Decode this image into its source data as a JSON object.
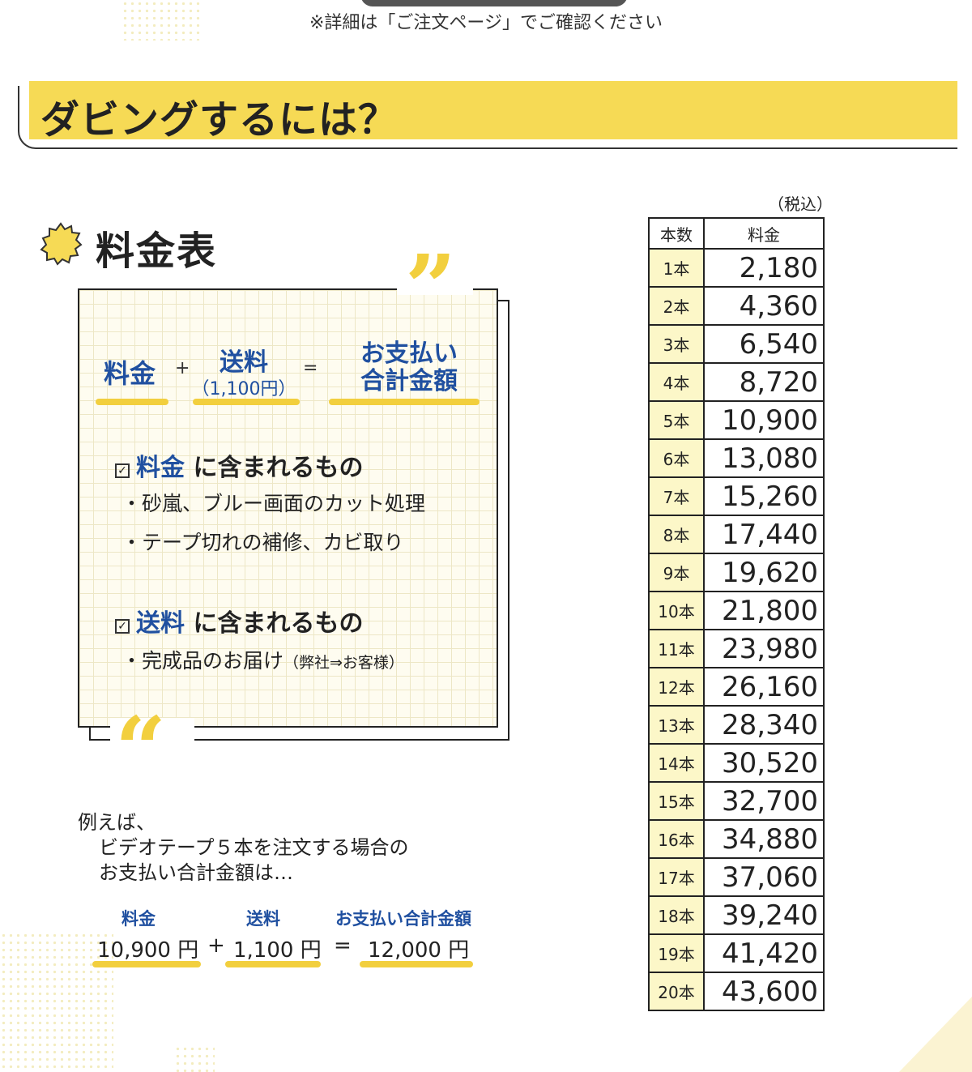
{
  "notice": "※詳細は「ご注文ページ」でご確認ください",
  "banner_title": "ダビングするには？",
  "section_title": "料金表",
  "formula": {
    "fee": "料金",
    "plus": "+",
    "shipping": "送料",
    "shipping_amount": "（1,100円）",
    "equals": "=",
    "total_line1": "お支払い",
    "total_line2": "合計金額"
  },
  "includes": [
    {
      "keyword": "料金",
      "suffix": "に含まれるもの",
      "items": [
        "・砂嵐、ブルー画面のカット処理",
        "・テープ切れの補修、カビ取り"
      ]
    },
    {
      "keyword": "送料",
      "suffix": "に含まれるもの",
      "items": [
        "・完成品のお届け"
      ],
      "note": "（弊社⇒お客様）"
    }
  ],
  "example": {
    "line1": "例えば、",
    "line2": "ビデオテープ５本を注文する場合の",
    "line3": "お支払い合計金額は…",
    "fee_label": "料金",
    "shipping_label": "送料",
    "total_label": "お支払い合計金額",
    "fee_value": "10,900 円",
    "plus": "+",
    "shipping_value": "1,100 円",
    "equals": "=",
    "total_value": "12,000 円"
  },
  "table": {
    "tax_note": "（税込）",
    "header_count": "本数",
    "header_price": "料金",
    "rows": [
      {
        "count": "1本",
        "price": "2,180"
      },
      {
        "count": "2本",
        "price": "4,360"
      },
      {
        "count": "3本",
        "price": "6,540"
      },
      {
        "count": "4本",
        "price": "8,720"
      },
      {
        "count": "5本",
        "price": "10,900"
      },
      {
        "count": "6本",
        "price": "13,080"
      },
      {
        "count": "7本",
        "price": "15,260"
      },
      {
        "count": "8本",
        "price": "17,440"
      },
      {
        "count": "9本",
        "price": "19,620"
      },
      {
        "count": "10本",
        "price": "21,800"
      },
      {
        "count": "11本",
        "price": "23,980"
      },
      {
        "count": "12本",
        "price": "26,160"
      },
      {
        "count": "13本",
        "price": "28,340"
      },
      {
        "count": "14本",
        "price": "30,520"
      },
      {
        "count": "15本",
        "price": "32,700"
      },
      {
        "count": "16本",
        "price": "34,880"
      },
      {
        "count": "17本",
        "price": "37,060"
      },
      {
        "count": "18本",
        "price": "39,240"
      },
      {
        "count": "19本",
        "price": "41,420"
      },
      {
        "count": "20本",
        "price": "43,600"
      }
    ]
  },
  "colors": {
    "accent_yellow": "#f6da55",
    "blue_text": "#2050a0",
    "row_yellow": "#fcf7c8"
  }
}
